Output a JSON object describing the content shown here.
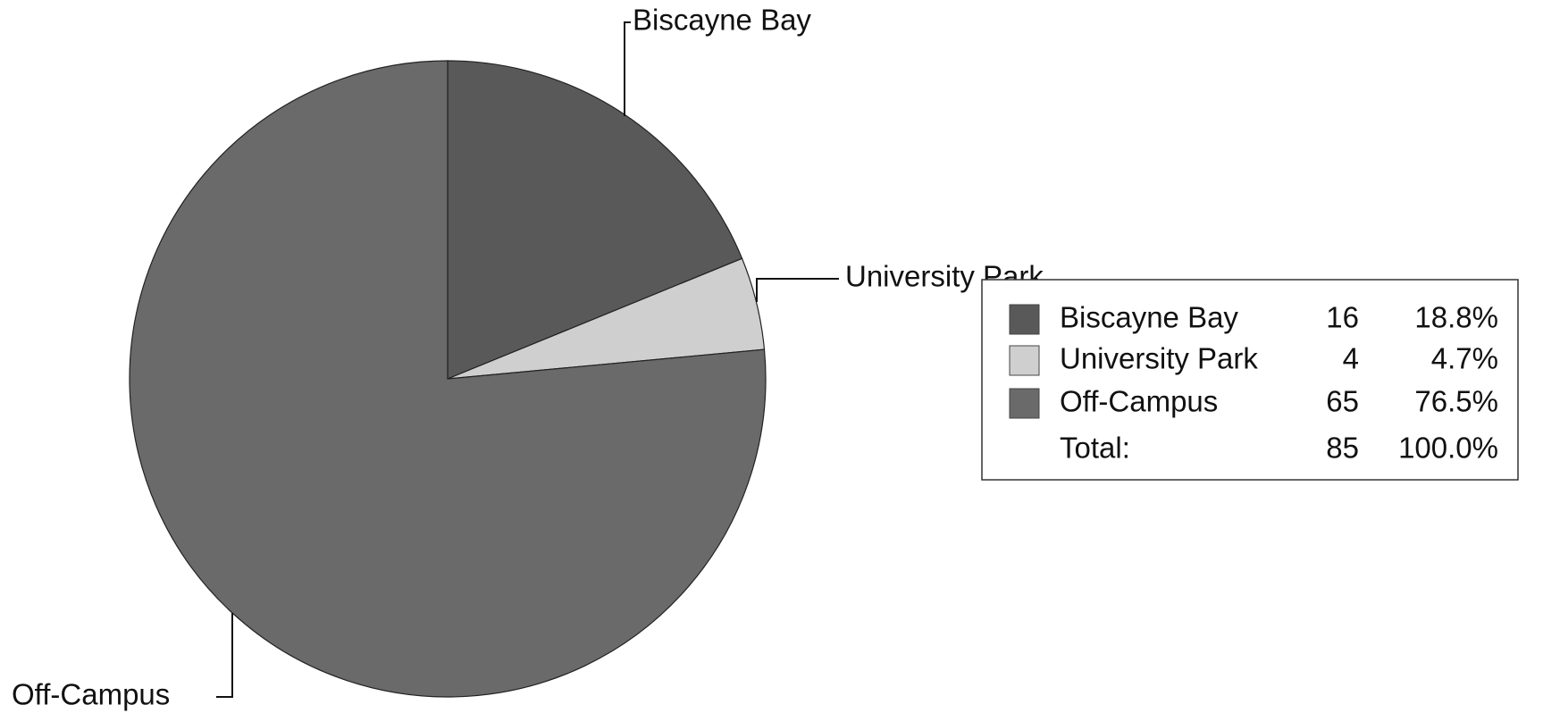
{
  "chart_data": {
    "type": "pie",
    "categories": [
      "Biscayne Bay",
      "University Park",
      "Off-Campus"
    ],
    "values": [
      16,
      4,
      65
    ],
    "percent_labels": [
      "18.8%",
      "4.7%",
      "76.5%"
    ],
    "colors": [
      "#595959",
      "#cfcfcf",
      "#6a6a6a"
    ],
    "total_label": "Total:",
    "total": 85,
    "total_percent_label": "100.0%",
    "legend": "right"
  }
}
